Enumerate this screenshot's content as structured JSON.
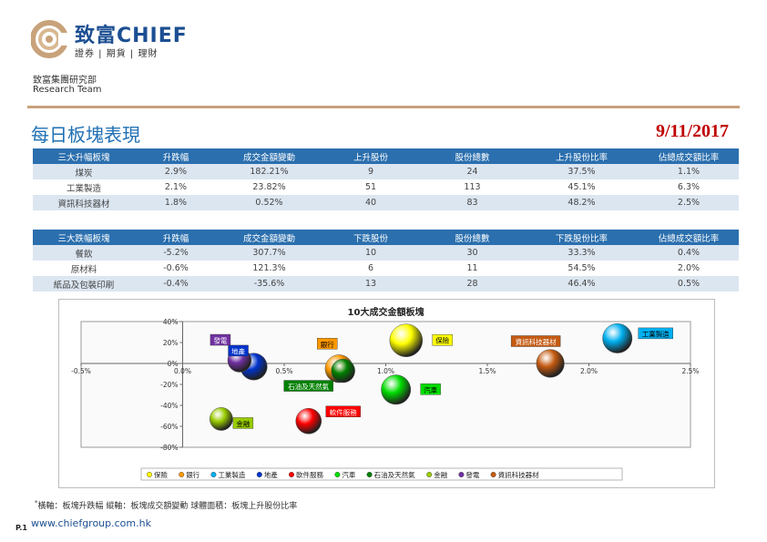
{
  "header": {
    "logo_cn": "致富CHIEF",
    "logo_sub": "證券 | 期貨 | 理財",
    "dept_cn": "致富集團研究部",
    "dept_en": "Research Team"
  },
  "colors": {
    "brand_blue": "#1c4f92",
    "header_blue": "#2b6fae",
    "date_red": "#c00000",
    "rule_gold": "#c8a27a"
  },
  "page": {
    "title": "每日板塊表現",
    "date": "9/11/2017"
  },
  "top_table": {
    "headers": [
      "三大升幅板塊",
      "升跌幅",
      "成交金額變動",
      "上升股份",
      "股份總數",
      "上升股份比率",
      "佔總成交額比率"
    ],
    "rows": [
      [
        "煤炭",
        "2.9%",
        "182.21%",
        "9",
        "24",
        "37.5%",
        "1.1%"
      ],
      [
        "工業製造",
        "2.1%",
        "23.82%",
        "51",
        "113",
        "45.1%",
        "6.3%"
      ],
      [
        "資訊科技器材",
        "1.8%",
        "0.52%",
        "40",
        "83",
        "48.2%",
        "2.5%"
      ]
    ]
  },
  "bottom_table": {
    "headers": [
      "三大跌幅板塊",
      "升跌幅",
      "成交金額變動",
      "下跌股份",
      "股份總數",
      "下跌股份比率",
      "佔總成交額比率"
    ],
    "rows": [
      [
        "餐飲",
        "-5.2%",
        "307.7%",
        "10",
        "30",
        "33.3%",
        "0.4%"
      ],
      [
        "原材料",
        "-0.6%",
        "121.3%",
        "6",
        "11",
        "54.5%",
        "2.0%"
      ],
      [
        "紙品及包裝印刷",
        "-0.4%",
        "-35.6%",
        "13",
        "28",
        "46.4%",
        "0.5%"
      ]
    ]
  },
  "chart_data": {
    "type": "scatter",
    "title": "10大成交金額板塊",
    "xlim": [
      -0.5,
      2.5
    ],
    "ylim": [
      -80,
      40
    ],
    "x_ticks": [
      "-0.5%",
      "0.0%",
      "0.5%",
      "1.0%",
      "1.5%",
      "2.0%",
      "2.5%"
    ],
    "y_ticks": [
      "40%",
      "20%",
      "0%",
      "-20%",
      "-40%",
      "-60%",
      "-80%"
    ],
    "legend_position": "bottom",
    "series": [
      {
        "name": "保險",
        "x": 1.1,
        "y": 22,
        "size": 1.0,
        "color": "#ffff00"
      },
      {
        "name": "銀行",
        "x": 0.77,
        "y": -5,
        "size": 0.85,
        "color": "#ff9900"
      },
      {
        "name": "工業製造",
        "x": 2.14,
        "y": 24,
        "size": 0.9,
        "color": "#00b0f0"
      },
      {
        "name": "地產",
        "x": 0.35,
        "y": -3,
        "size": 0.82,
        "color": "#0033cc"
      },
      {
        "name": "軟件服務",
        "x": 0.62,
        "y": -55,
        "size": 0.78,
        "color": "#ff0000"
      },
      {
        "name": "汽車",
        "x": 1.05,
        "y": -25,
        "size": 0.9,
        "color": "#00dd00"
      },
      {
        "name": "石油及天然氣",
        "x": 0.79,
        "y": -7,
        "size": 0.72,
        "color": "#008000"
      },
      {
        "name": "金融",
        "x": 0.19,
        "y": -53,
        "size": 0.7,
        "color": "#99cc00"
      },
      {
        "name": "發電",
        "x": 0.28,
        "y": 3,
        "size": 0.72,
        "color": "#7030a0"
      },
      {
        "name": "資訊科技器材",
        "x": 1.81,
        "y": 0,
        "size": 0.85,
        "color": "#c55a11"
      }
    ],
    "point_labels": [
      {
        "name": "保險",
        "bg": "#ffff00",
        "fg": "#000000"
      },
      {
        "name": "銀行",
        "bg": "#ff9900",
        "fg": "#000000"
      },
      {
        "name": "工業製造",
        "bg": "#00b0f0",
        "fg": "#000000"
      },
      {
        "name": "地產",
        "bg": "#0033cc",
        "fg": "#ffffff"
      },
      {
        "name": "軟件服務",
        "bg": "#ff0000",
        "fg": "#ffffff"
      },
      {
        "name": "汽車",
        "bg": "#00dd00",
        "fg": "#000000"
      },
      {
        "name": "石油及天然氣",
        "bg": "#008000",
        "fg": "#ffffff"
      },
      {
        "name": "金融",
        "bg": "#99cc00",
        "fg": "#000000"
      },
      {
        "name": "發電",
        "bg": "#7030a0",
        "fg": "#ffffff"
      },
      {
        "name": "資訊科技器材",
        "bg": "#c55a11",
        "fg": "#ffffff"
      }
    ]
  },
  "footer": {
    "star": "*",
    "footnote": "橫軸：板塊升跌幅      縱軸：板塊成交額變動      球體面積：板塊上升股份比率",
    "page_no": "P.1",
    "url": "www.chiefgroup.com.hk"
  }
}
